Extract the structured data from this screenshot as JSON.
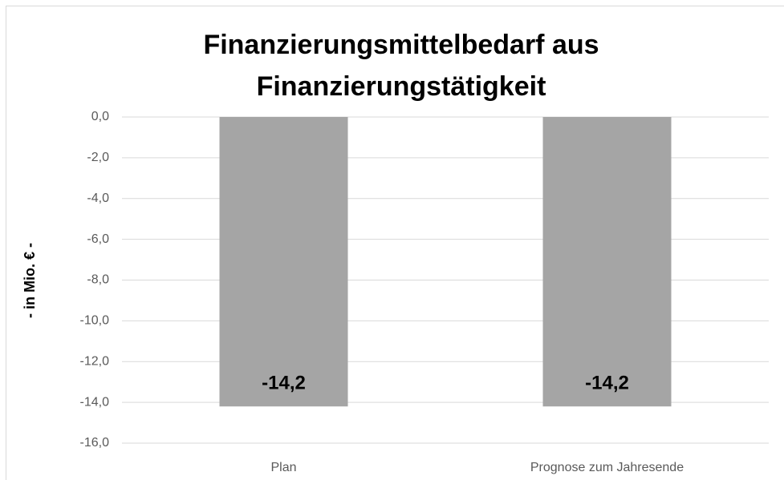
{
  "chart_data": {
    "type": "bar",
    "title": [
      "Finanzierungsmittelbedarf aus",
      "Finanzierungstätigkeit"
    ],
    "y_label": "- in Mio. € -",
    "categories": [
      "Plan",
      "Prognose zum Jahresende"
    ],
    "values": [
      -14.2,
      -14.2
    ],
    "value_labels": [
      "-14,2",
      "-14,2"
    ],
    "color": "#a5a5a5",
    "ylim": [
      -16,
      0
    ],
    "yticks": [
      {
        "value": 0,
        "label": "0,0"
      },
      {
        "value": -2,
        "label": "-2,0"
      },
      {
        "value": -4,
        "label": "-4,0"
      },
      {
        "value": -6,
        "label": "-6,0"
      },
      {
        "value": -8,
        "label": "-8,0"
      },
      {
        "value": -10,
        "label": "-10,0"
      },
      {
        "value": -12,
        "label": "-12,0"
      },
      {
        "value": -14,
        "label": "-14,0"
      },
      {
        "value": -16,
        "label": "-16,0"
      }
    ],
    "grid": true
  }
}
